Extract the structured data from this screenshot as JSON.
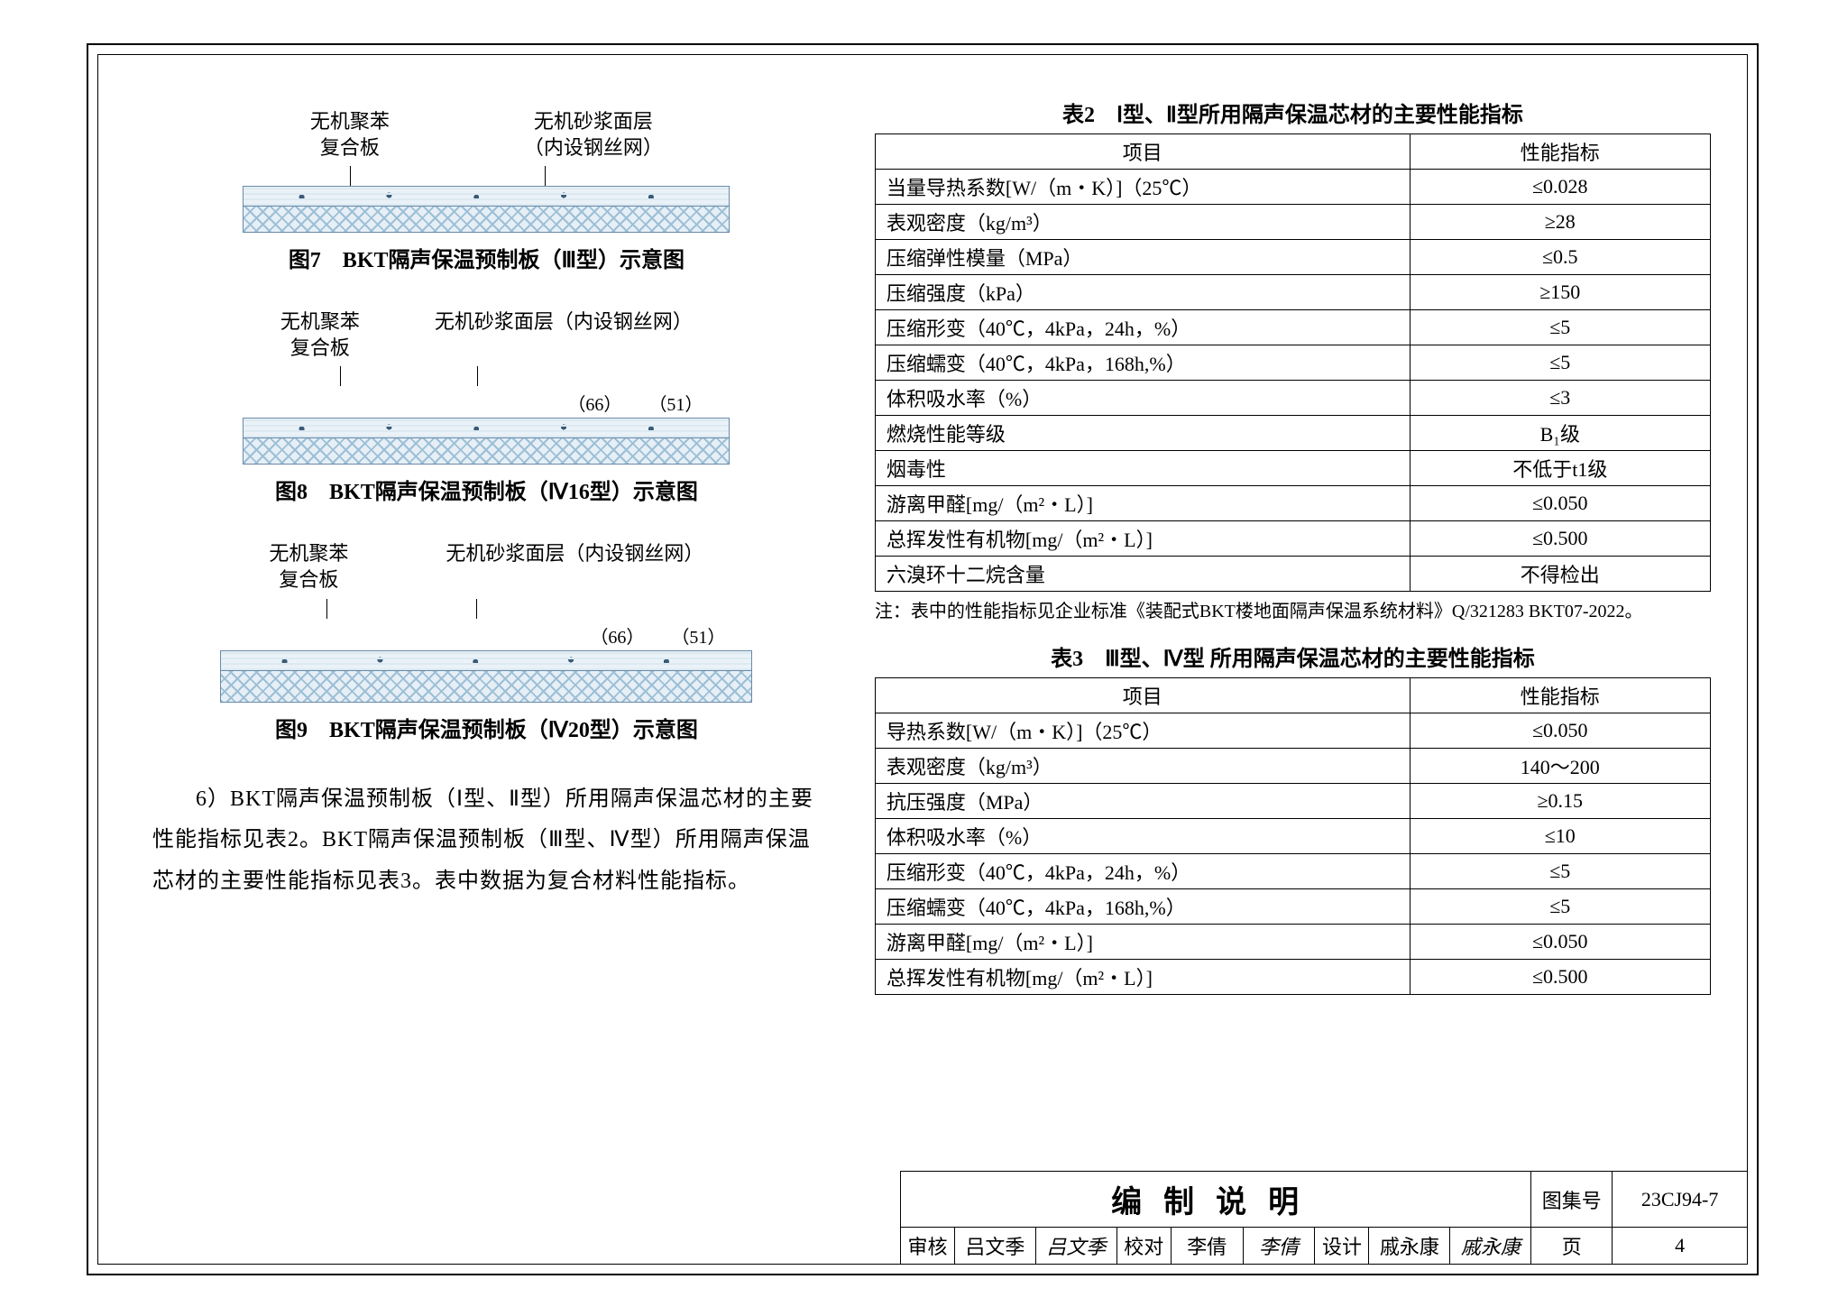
{
  "figures": {
    "fig7": {
      "label_left": "无机聚苯\n复合板",
      "label_right": "无机砂浆面层\n（内设钢丝网）",
      "caption": "图7　BKT隔声保温预制板（Ⅲ型）示意图"
    },
    "fig8": {
      "label_left": "无机聚苯\n复合板",
      "label_right": "无机砂浆面层（内设钢丝网）",
      "dim1": "（66）",
      "dim2": "（51）",
      "caption": "图8　BKT隔声保温预制板（Ⅳ16型）示意图"
    },
    "fig9": {
      "label_left": "无机聚苯\n复合板",
      "label_right": "无机砂浆面层（内设钢丝网）",
      "dim1": "（66）",
      "dim2": "（51）",
      "caption": "图9　BKT隔声保温预制板（Ⅳ20型）示意图"
    }
  },
  "paragraph": "6）BKT隔声保温预制板（Ⅰ型、Ⅱ型）所用隔声保温芯材的主要性能指标见表2。BKT隔声保温预制板（Ⅲ型、Ⅳ型）所用隔声保温芯材的主要性能指标见表3。表中数据为复合材料性能指标。",
  "table2": {
    "caption": "表2　Ⅰ型、Ⅱ型所用隔声保温芯材的主要性能指标",
    "col1": "项目",
    "col2": "性能指标",
    "rows": [
      [
        "当量导热系数[W/（m・K）]（25℃）",
        "≤0.028"
      ],
      [
        "表观密度（kg/m³）",
        "≥28"
      ],
      [
        "压缩弹性模量（MPa）",
        "≤0.5"
      ],
      [
        "压缩强度（kPa）",
        "≥150"
      ],
      [
        "压缩形变（40℃，4kPa，24h，%）",
        "≤5"
      ],
      [
        "压缩蠕变（40℃，4kPa，168h,%）",
        "≤5"
      ],
      [
        "体积吸水率（%）",
        "≤3"
      ],
      [
        "燃烧性能等级",
        "B₁级"
      ],
      [
        "烟毒性",
        "不低于t1级"
      ],
      [
        "游离甲醛[mg/（m²・L）]",
        "≤0.050"
      ],
      [
        "总挥发性有机物[mg/（m²・L）]",
        "≤0.500"
      ],
      [
        "六溴环十二烷含量",
        "不得检出"
      ]
    ],
    "note": "注：表中的性能指标见企业标准《装配式BKT楼地面隔声保温系统材料》Q/321283 BKT07-2022。"
  },
  "table3": {
    "caption": "表3　Ⅲ型、Ⅳ型 所用隔声保温芯材的主要性能指标",
    "col1": "项目",
    "col2": "性能指标",
    "rows": [
      [
        "导热系数[W/（m・K）]（25℃）",
        "≤0.050"
      ],
      [
        "表观密度（kg/m³）",
        "140～200"
      ],
      [
        "抗压强度（MPa）",
        "≥0.15"
      ],
      [
        "体积吸水率（%）",
        "≤10"
      ],
      [
        "压缩形变（40℃，4kPa，24h，%）",
        "≤5"
      ],
      [
        "压缩蠕变（40℃，4kPa，168h,%）",
        "≤5"
      ],
      [
        "游离甲醛[mg/（m²・L）]",
        "≤0.050"
      ],
      [
        "总挥发性有机物[mg/（m²・L）]",
        "≤0.500"
      ]
    ]
  },
  "titleblock": {
    "title": "编制说明",
    "atlas_label": "图集号",
    "atlas_no": "23CJ94-7",
    "review_label": "审核",
    "reviewer": "吕文季",
    "reviewer_sig": "吕文季",
    "check_label": "校对",
    "checker": "李倩",
    "checker_sig": "李倩",
    "design_label": "设计",
    "designer": "戚永康",
    "designer_sig": "戚永康",
    "page_label": "页",
    "page_no": "4"
  },
  "colors": {
    "border": "#000000",
    "section_border": "#6a8aa8",
    "hatch": "#9dbfd6",
    "hatch_bg": "#e6eff6",
    "mortar_bg": "#eaf2f8"
  }
}
